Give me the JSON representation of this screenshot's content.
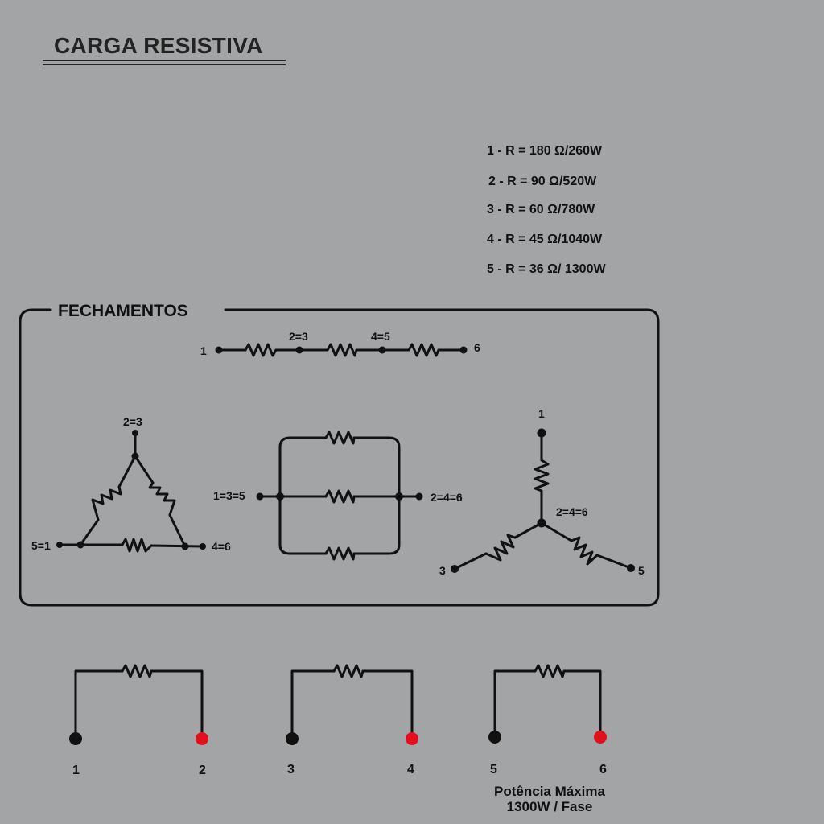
{
  "title": "CARGA RESISTIVA",
  "resistor_specs": [
    {
      "label": "1 - R = 180 Ω/260W"
    },
    {
      "label": "2 - R = 90 Ω/520W"
    },
    {
      "label": "3 - R = 60 Ω/780W"
    },
    {
      "label": "4 - R = 45 Ω/1040W"
    },
    {
      "label": "5 - R = 36 Ω/ 1300W"
    }
  ],
  "fechamentos": {
    "heading": "FECHAMENTOS",
    "series": {
      "left": "1",
      "node_a": "2=3",
      "node_b": "4=5",
      "right": "6"
    },
    "delta": {
      "top": "2=3",
      "left": "5=1",
      "right": "4=6"
    },
    "parallel": {
      "left": "1=3=5",
      "right": "2=4=6"
    },
    "star": {
      "top": "1",
      "center": "2=4=6",
      "left": "3",
      "right": "5"
    }
  },
  "phases": [
    {
      "terminal_a": "1",
      "terminal_b": "2"
    },
    {
      "terminal_a": "3",
      "terminal_b": "4"
    },
    {
      "terminal_a": "5",
      "terminal_b": "6"
    }
  ],
  "max_power_line1": "Potência Máxima",
  "max_power_line2": "1300W / Fase",
  "colors": {
    "background": "#a3a4a6",
    "wire": "#111111",
    "hot_terminal": "#e0101c"
  }
}
